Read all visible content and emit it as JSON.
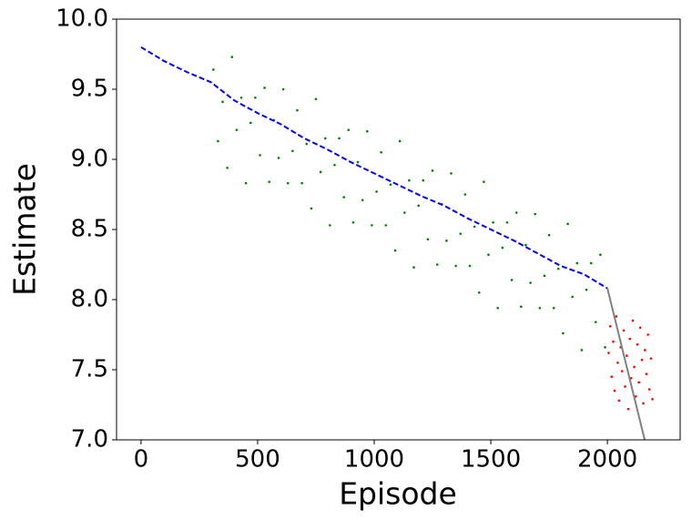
{
  "chart_data": {
    "type": "scatter",
    "x_label": "Episode",
    "y_label": "Estimate",
    "xlim": [
      -105,
      2312
    ],
    "ylim": [
      7.0,
      10.0
    ],
    "xticks": [
      0,
      500,
      1000,
      1500,
      2000
    ],
    "yticks": [
      {
        "value": 7.0,
        "label": "7.0"
      },
      7.5,
      {
        "value": 8.0,
        "label": "8.0"
      },
      8.5,
      {
        "value": 9.0,
        "label": "9.0"
      },
      9.5,
      {
        "value": 10.0,
        "label": "10.0"
      }
    ],
    "series": [
      {
        "type": "scatter",
        "color": "#008000",
        "x": [
          310,
          330,
          350,
          370,
          390,
          410,
          430,
          450,
          470,
          490,
          510,
          530,
          550,
          570,
          590,
          610,
          630,
          650,
          670,
          690,
          710,
          730,
          750,
          770,
          790,
          810,
          830,
          850,
          870,
          890,
          910,
          930,
          950,
          970,
          990,
          1010,
          1030,
          1050,
          1070,
          1090,
          1110,
          1130,
          1150,
          1170,
          1190,
          1210,
          1230,
          1250,
          1270,
          1290,
          1310,
          1330,
          1350,
          1370,
          1390,
          1410,
          1430,
          1450,
          1470,
          1490,
          1510,
          1530,
          1550,
          1570,
          1590,
          1610,
          1630,
          1650,
          1670,
          1690,
          1710,
          1730,
          1750,
          1770,
          1790,
          1810,
          1830,
          1850,
          1870,
          1890,
          1910,
          1930,
          1950,
          1970,
          1990
        ],
        "values": [
          9.64,
          9.13,
          9.41,
          8.94,
          9.73,
          9.21,
          9.44,
          8.83,
          9.26,
          9.44,
          9.03,
          9.51,
          8.84,
          9.28,
          9.01,
          9.5,
          8.83,
          9.06,
          9.35,
          8.83,
          9.11,
          8.65,
          9.43,
          8.91,
          9.15,
          8.53,
          8.96,
          9.15,
          8.73,
          9.21,
          8.55,
          8.98,
          8.71,
          9.2,
          8.53,
          8.77,
          9.05,
          8.53,
          8.82,
          8.35,
          9.13,
          8.62,
          8.85,
          8.23,
          8.67,
          8.85,
          8.43,
          8.92,
          8.25,
          8.68,
          8.42,
          8.9,
          8.24,
          8.47,
          8.75,
          8.24,
          8.52,
          8.05,
          8.84,
          8.32,
          8.55,
          7.94,
          8.37,
          8.55,
          8.14,
          8.62,
          7.95,
          8.39,
          8.12,
          8.61,
          7.94,
          8.17,
          8.46,
          7.94,
          8.22,
          7.76,
          8.54,
          8.02,
          8.26,
          7.64,
          8.07,
          8.26,
          7.84,
          8.32,
          7.66
        ]
      },
      {
        "type": "scatter",
        "color": "#ff0000",
        "x": [
          2005,
          2012,
          2018,
          2025,
          2031,
          2038,
          2044,
          2050,
          2057,
          2063,
          2070,
          2076,
          2083,
          2089,
          2096,
          2102,
          2109,
          2115,
          2122,
          2128,
          2135,
          2141,
          2148,
          2154,
          2161,
          2167,
          2174,
          2180,
          2187,
          2193
        ],
        "values": [
          7.62,
          7.81,
          7.45,
          7.7,
          7.35,
          7.88,
          7.55,
          7.28,
          7.66,
          7.49,
          7.78,
          7.38,
          7.6,
          7.22,
          7.72,
          7.44,
          7.85,
          7.52,
          7.31,
          7.68,
          7.41,
          7.8,
          7.57,
          7.26,
          7.64,
          7.47,
          7.75,
          7.36,
          7.58,
          7.29
        ]
      },
      {
        "type": "line",
        "color": "#0000ff",
        "dashed": true,
        "x": [
          0,
          100,
          200,
          300,
          400,
          500,
          600,
          700,
          800,
          900,
          1000,
          1100,
          1200,
          1300,
          1400,
          1500,
          1600,
          1700,
          1800,
          1900,
          2000
        ],
        "values": [
          9.8,
          9.7,
          9.62,
          9.55,
          9.42,
          9.33,
          9.25,
          9.15,
          9.07,
          8.98,
          8.9,
          8.82,
          8.74,
          8.67,
          8.58,
          8.5,
          8.42,
          8.33,
          8.24,
          8.18,
          8.08
        ]
      },
      {
        "type": "line",
        "color": "#808080",
        "dashed": false,
        "x": [
          2000,
          2160
        ],
        "values": [
          8.08,
          7.0
        ]
      }
    ]
  }
}
